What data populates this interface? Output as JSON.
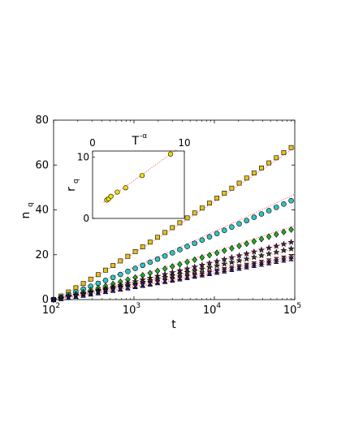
{
  "chart_data": [
    {
      "type": "scatter",
      "xscale": "log",
      "xlim": [
        100,
        100000
      ],
      "ylim": [
        0,
        80
      ],
      "xlabel_base": "t",
      "ylabel_base": "n",
      "ylabel_sub": "q",
      "xtick_base": "10",
      "xticks": [
        {
          "value": 100,
          "exp": "2"
        },
        {
          "value": 1000,
          "exp": "3"
        },
        {
          "value": 10000,
          "exp": "4"
        },
        {
          "value": 100000,
          "exp": "5"
        }
      ],
      "yticks": [
        0,
        20,
        40,
        60,
        80
      ],
      "grid": false,
      "fit_line_color": "#ff4040",
      "series": [
        {
          "marker": "square",
          "color": "#e6c21a",
          "final": 67.8,
          "fit_final": 67.8
        },
        {
          "marker": "circle",
          "color": "#2ec4c4",
          "final": 44.1,
          "fit_final": 47.0
        },
        {
          "marker": "diamond",
          "color": "#22b022",
          "final": 31.2,
          "fit_final": 33.0
        },
        {
          "marker": "star",
          "color": "#701a50",
          "final": 25.6,
          "fit_final": 26.0
        },
        {
          "marker": "star",
          "color": "#3a3a3a",
          "final": 22.7,
          "fit_final": 22.5
        },
        {
          "marker": "hourglass",
          "color": "#e02020",
          "final": 19.2,
          "fit_final": 19.5
        },
        {
          "marker": "hourglass",
          "color": "#2030c0",
          "final": 18.2,
          "fit_final": 18.2
        }
      ]
    },
    {
      "type": "scatter",
      "inset": true,
      "xlabel_base": "T",
      "xlabel_sup": "-α",
      "ylabel_base": "r",
      "ylabel_sub": "q",
      "xlim": [
        0,
        10
      ],
      "ylim": [
        0,
        11
      ],
      "xticks": [
        0,
        10
      ],
      "yticks": [
        0,
        10
      ],
      "marker_color": "#f0e000",
      "fit_line_color": "#ff4040",
      "points": [
        {
          "x": 1.55,
          "y": 3.0
        },
        {
          "x": 1.75,
          "y": 3.2
        },
        {
          "x": 2.0,
          "y": 3.6
        },
        {
          "x": 2.7,
          "y": 4.3
        },
        {
          "x": 3.6,
          "y": 5.0
        },
        {
          "x": 5.4,
          "y": 7.0
        },
        {
          "x": 8.5,
          "y": 10.5
        }
      ]
    }
  ]
}
